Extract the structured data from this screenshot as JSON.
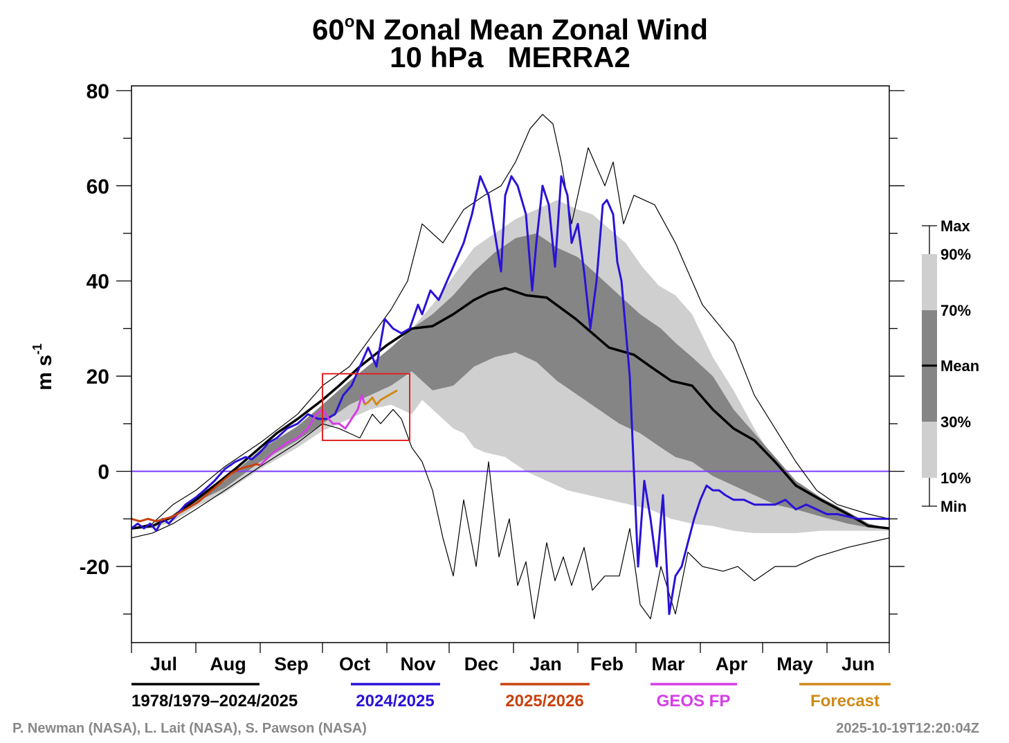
{
  "chart_data": {
    "type": "line",
    "title_prefix": "60",
    "title_degree": "o",
    "title_rest": "N Zonal Mean Zonal Wind",
    "subtitle": "10 hPa   MERRA2",
    "ylabel_base": "m s",
    "ylabel_exp": "-1",
    "ylim": [
      -36,
      81
    ],
    "yticks": [
      80,
      60,
      40,
      20,
      0,
      -20
    ],
    "ytick_labels": [
      "80",
      "60",
      "40",
      "20",
      "0",
      "-20"
    ],
    "months": [
      "Jul",
      "Aug",
      "Sep",
      "Oct",
      "Nov",
      "Dec",
      "Jan",
      "Feb",
      "Mar",
      "Apr",
      "May",
      "Jun"
    ],
    "month_lengths": [
      31,
      31,
      30,
      31,
      30,
      31,
      31,
      28,
      31,
      30,
      31,
      30
    ],
    "x_units": "day index starting 1 Jul (0-365)",
    "zero_line_color": "#7a3cff",
    "highlight_box": {
      "x_range": [
        92,
        134
      ],
      "y_range": [
        6.5,
        20.5
      ],
      "color": "#e32020"
    },
    "percentile_key": {
      "labels": [
        "Max",
        "90%",
        "70%",
        "Mean",
        "30%",
        "10%",
        "Min"
      ]
    },
    "colors": {
      "mean": "#000000",
      "y2024": "#2a12d8",
      "y2025": "#c8410e",
      "geos": "#d53de6",
      "forecast": "#d08a18",
      "band_outer": "#cfcfcf",
      "band_inner": "#858585"
    },
    "legend": [
      {
        "label": "1978/1979–2024/2025",
        "color": "#000000"
      },
      {
        "label": "2024/2025",
        "color": "#2a12d8"
      },
      {
        "label": "2025/2026",
        "color": "#c8410e"
      },
      {
        "label": "GEOS FP",
        "color": "#d53de6"
      },
      {
        "label": "Forecast",
        "color": "#d08a18"
      }
    ],
    "series": [
      {
        "name": "Mean",
        "x": [
          0,
          10,
          20,
          31,
          40,
          50,
          62,
          70,
          80,
          92,
          100,
          110,
          123,
          135,
          145,
          155,
          165,
          172,
          180,
          190,
          200,
          214,
          230,
          242,
          250,
          260,
          270,
          280,
          290,
          300,
          310,
          320,
          332,
          345,
          355,
          365
        ],
        "y": [
          -12,
          -11.5,
          -9.5,
          -6,
          -3,
          0.5,
          5,
          8,
          11,
          15,
          18,
          22,
          26.5,
          30,
          30.5,
          33,
          36,
          37.5,
          38.5,
          37,
          36.5,
          32,
          26,
          24.5,
          22,
          19,
          18,
          13,
          9,
          6.5,
          2,
          -3,
          -6,
          -9,
          -11.5,
          -12
        ]
      },
      {
        "name": "Max",
        "x": [
          0,
          10,
          20,
          31,
          45,
          62,
          80,
          92,
          105,
          115,
          125,
          133,
          140,
          150,
          160,
          170,
          178,
          185,
          192,
          198,
          203,
          207,
          212,
          220,
          228,
          232,
          237,
          242,
          252,
          262,
          275,
          290,
          300,
          310,
          320,
          330,
          340,
          355,
          365
        ],
        "y": [
          -12,
          -11,
          -7,
          -4,
          1,
          6,
          12,
          18,
          22,
          28,
          34,
          40,
          52,
          48,
          55,
          58,
          60,
          65,
          72,
          75,
          73,
          65,
          52,
          68,
          60,
          65,
          52,
          58,
          56,
          48,
          35,
          27,
          16,
          9,
          2,
          -4,
          -7,
          -9,
          -10
        ]
      },
      {
        "name": "Min",
        "x": [
          0,
          10,
          20,
          31,
          45,
          62,
          80,
          92,
          100,
          110,
          116,
          120,
          126,
          130,
          135,
          140,
          145,
          150,
          155,
          160,
          166,
          172,
          177,
          182,
          186,
          190,
          194,
          200,
          204,
          208,
          212,
          218,
          222,
          228,
          235,
          240,
          245,
          250,
          255,
          262,
          268,
          275,
          285,
          292,
          300,
          310,
          320,
          330,
          345,
          365
        ],
        "y": [
          -14,
          -13,
          -11,
          -8,
          -4,
          1,
          6,
          10,
          9,
          7,
          12,
          10,
          13,
          11,
          5,
          2,
          -4,
          -14,
          -22,
          -6,
          -20,
          2,
          -18,
          -10,
          -24,
          -19,
          -31,
          -15,
          -23,
          -18,
          -24,
          -16,
          -25,
          -22,
          -22,
          -12,
          -28,
          -31,
          -20,
          -30,
          -17,
          -20,
          -21,
          -20,
          -23,
          -20,
          -20,
          -18,
          -16,
          -14
        ]
      },
      {
        "name": "90%",
        "x": [
          0,
          10,
          20,
          31,
          45,
          62,
          80,
          92,
          105,
          115,
          125,
          135,
          145,
          155,
          165,
          175,
          185,
          195,
          205,
          215,
          222,
          230,
          238,
          246,
          254,
          262,
          270,
          280,
          290,
          300,
          310,
          320,
          332,
          345,
          355,
          365
        ],
        "y": [
          -12,
          -11.5,
          -9,
          -5.5,
          -1,
          4,
          9,
          13,
          18,
          21,
          24,
          30,
          35,
          41,
          47,
          50,
          53,
          55,
          57,
          55,
          54,
          51,
          48,
          43,
          39,
          37,
          33,
          24,
          17,
          9,
          2,
          -4,
          -7,
          -9,
          -11,
          -12
        ]
      },
      {
        "name": "70%",
        "x": [
          0,
          10,
          20,
          31,
          45,
          62,
          80,
          92,
          105,
          115,
          125,
          135,
          145,
          155,
          165,
          175,
          185,
          195,
          205,
          215,
          225,
          235,
          245,
          255,
          262,
          270,
          280,
          290,
          300,
          310,
          320,
          332,
          345,
          355,
          365
        ],
        "y": [
          -12,
          -11.5,
          -9.3,
          -5.8,
          -2,
          4.5,
          9.5,
          14,
          19,
          22.5,
          26,
          30,
          33,
          37,
          42,
          46,
          49,
          50,
          47,
          45,
          41,
          37,
          33,
          30,
          27,
          24,
          20,
          13,
          8,
          3,
          -2,
          -5.5,
          -8.5,
          -11,
          -12
        ]
      },
      {
        "name": "30%",
        "x": [
          0,
          10,
          20,
          31,
          45,
          62,
          80,
          92,
          105,
          115,
          125,
          135,
          145,
          155,
          165,
          175,
          185,
          195,
          205,
          215,
          225,
          235,
          245,
          255,
          262,
          270,
          280,
          290,
          300,
          310,
          320,
          332,
          345,
          355,
          365
        ],
        "y": [
          -12,
          -11.5,
          -9.8,
          -6.5,
          -3.5,
          2,
          6.5,
          10,
          14,
          16,
          18,
          21,
          17,
          18,
          22,
          24,
          25,
          23,
          19,
          16,
          13,
          10,
          8,
          5,
          3,
          2,
          -1,
          -3,
          -5,
          -7,
          -8,
          -9.5,
          -11,
          -11.8,
          -12
        ]
      },
      {
        "name": "10%",
        "x": [
          0,
          10,
          20,
          31,
          45,
          62,
          80,
          92,
          105,
          115,
          125,
          135,
          140,
          145,
          150,
          155,
          160,
          165,
          170,
          180,
          190,
          200,
          210,
          220,
          230,
          240,
          250,
          260,
          270,
          280,
          290,
          300,
          310,
          320,
          332,
          345,
          355,
          365
        ],
        "y": [
          -12,
          -12,
          -10.5,
          -7.5,
          -4.5,
          0.5,
          5,
          8.5,
          11,
          13,
          14,
          12,
          15,
          13,
          11,
          9,
          8,
          5,
          4,
          3,
          0,
          -2,
          -4,
          -5,
          -6,
          -7,
          -8,
          -10,
          -11,
          -11.5,
          -12.5,
          -13,
          -13,
          -13,
          -12.5,
          -12.5,
          -12.5,
          -12.5
        ]
      },
      {
        "name": "2024/2025",
        "color": "#2a12d8",
        "x": [
          0,
          3,
          6,
          9,
          12,
          15,
          18,
          22,
          26,
          31,
          35,
          40,
          45,
          50,
          55,
          58,
          62,
          66,
          70,
          75,
          80,
          85,
          90,
          94,
          98,
          102,
          106,
          110,
          114,
          118,
          122,
          126,
          130,
          134,
          138,
          140,
          144,
          148,
          152,
          156,
          160,
          164,
          168,
          172,
          175,
          178,
          180,
          183,
          186,
          190,
          193,
          195,
          198,
          201,
          204,
          207,
          210,
          212,
          215,
          218,
          221,
          224,
          227,
          229,
          232,
          234,
          236,
          240,
          244,
          247,
          250,
          253,
          256,
          259,
          262,
          265,
          268,
          271,
          274,
          277,
          280,
          283,
          286,
          290,
          295,
          300,
          305,
          310,
          315,
          320,
          325,
          330,
          335,
          340,
          345,
          350,
          355,
          360,
          365
        ],
        "y": [
          -12,
          -11,
          -12,
          -11,
          -12.5,
          -10,
          -11,
          -9,
          -7,
          -5.5,
          -4,
          -2,
          0.5,
          2,
          3,
          2.5,
          4,
          6,
          7,
          9,
          10,
          12,
          11,
          11,
          12,
          16,
          18,
          22,
          26,
          22,
          32,
          30,
          29,
          30,
          35,
          33,
          38,
          36,
          40,
          44,
          48,
          54,
          62,
          58,
          50,
          42,
          58,
          62,
          60,
          54,
          38,
          48,
          60,
          56,
          43,
          62,
          58,
          48,
          52,
          42,
          30,
          40,
          56,
          57,
          54,
          44,
          40,
          20,
          -20,
          -2,
          -10,
          -20,
          -5,
          -30,
          -22,
          -20,
          -15,
          -10,
          -6,
          -3,
          -4,
          -4,
          -5,
          -6,
          -6,
          -7,
          -7,
          -7,
          -6,
          -8,
          -7,
          -8,
          -9,
          -9,
          -9.5,
          -10,
          -10,
          -10,
          -10
        ]
      },
      {
        "name": "2025/2026",
        "color": "#c8410e",
        "x": [
          0,
          4,
          8,
          12,
          16,
          20,
          24,
          28,
          32,
          36,
          40,
          44,
          48,
          52,
          56,
          58,
          60,
          62
        ],
        "y": [
          -10,
          -10.5,
          -10,
          -10.5,
          -10,
          -9.5,
          -8.5,
          -7.5,
          -6.5,
          -5,
          -3.5,
          -2,
          -0.5,
          0.5,
          1,
          1.2,
          1.5,
          1.3
        ]
      },
      {
        "name": "GEOS FP",
        "color": "#d53de6",
        "x": [
          62,
          66,
          70,
          75,
          80,
          85,
          89,
          92,
          95,
          97,
          100,
          103,
          106,
          109,
          111,
          112,
          113
        ],
        "y": [
          1.3,
          3,
          4.5,
          6,
          7,
          9,
          12,
          13,
          11,
          10,
          10,
          9,
          11,
          13,
          16,
          14.5,
          14
        ]
      },
      {
        "name": "Forecast",
        "color": "#d08a18",
        "x": [
          112,
          114,
          116,
          118,
          120,
          122,
          124,
          126,
          128
        ],
        "y": [
          14,
          14.5,
          15.5,
          14,
          15,
          15.5,
          16,
          16.5,
          17
        ]
      }
    ]
  },
  "footer": {
    "credit_left": "P. Newman (NASA), L. Lait (NASA), S. Pawson (NASA)",
    "timestamp": "2025-10-19T12:20:04Z"
  }
}
